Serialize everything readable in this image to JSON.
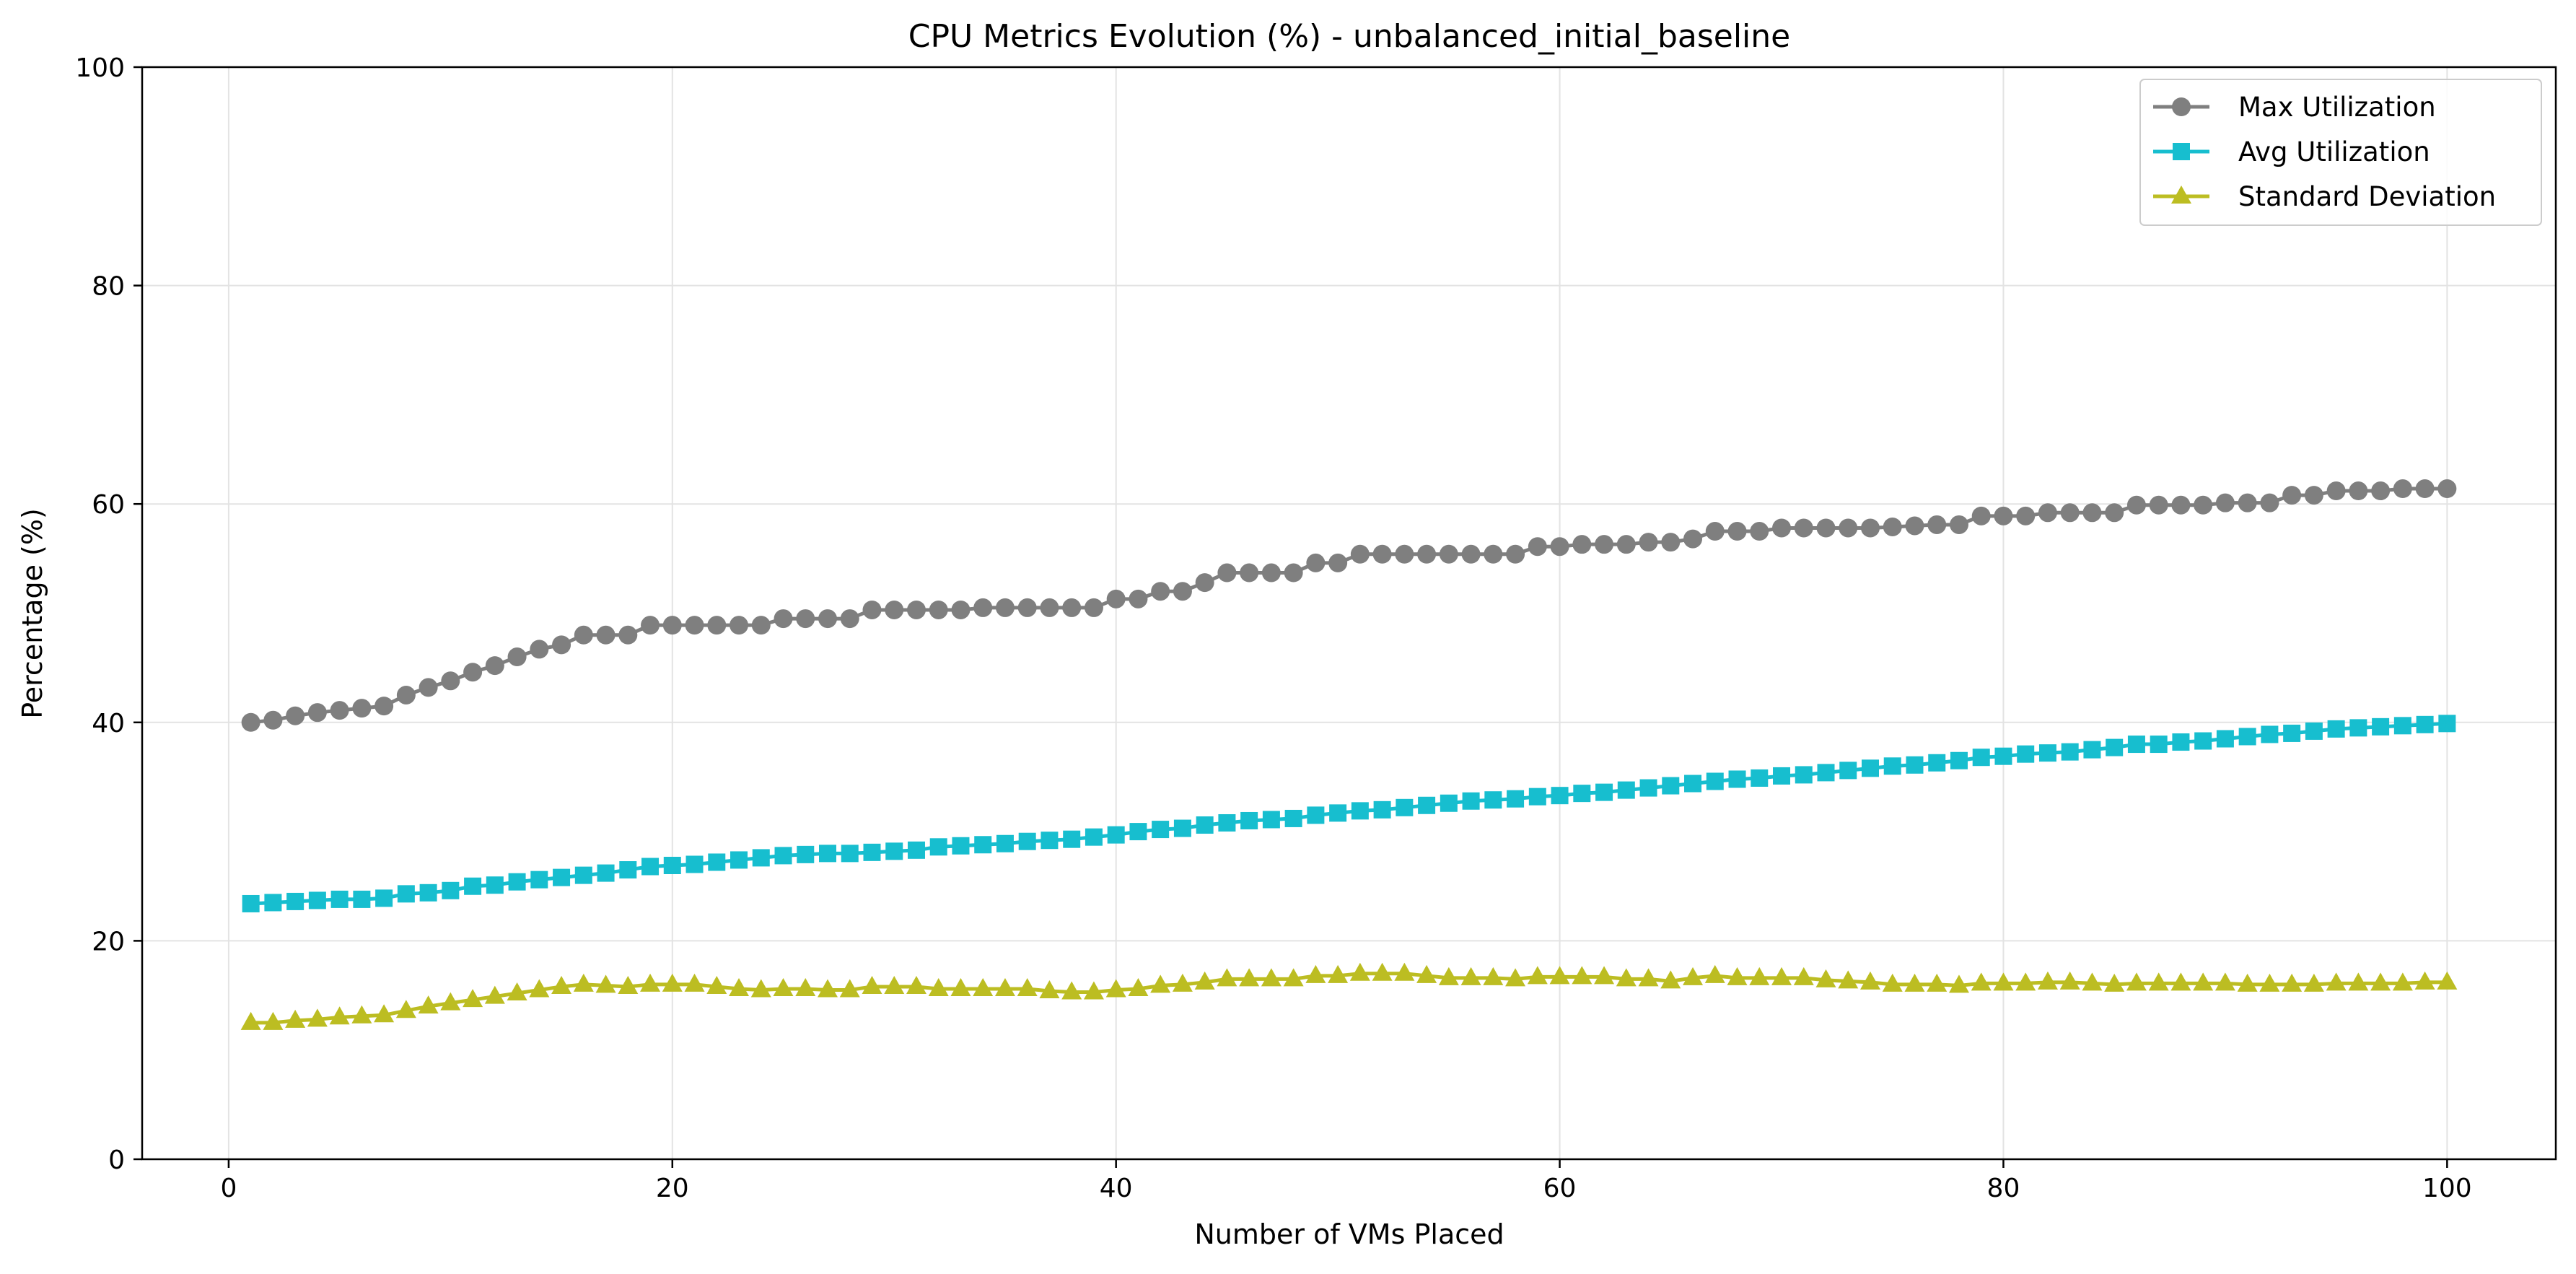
{
  "chart_data": {
    "type": "line",
    "title": "CPU Metrics Evolution (%) - unbalanced_initial_baseline",
    "xlabel": "Number of VMs Placed",
    "ylabel": "Percentage (%)",
    "xlim": [
      -3.9,
      104.9
    ],
    "ylim": [
      0,
      100
    ],
    "xticks": [
      0,
      20,
      40,
      60,
      80,
      100
    ],
    "yticks": [
      0,
      20,
      40,
      60,
      80,
      100
    ],
    "grid": true,
    "legend_position": "top-right",
    "series": [
      {
        "name": "Max Utilization",
        "color": "#7f7f7f",
        "marker": "circle",
        "values": [
          40.0,
          40.2,
          40.6,
          40.9,
          41.1,
          41.3,
          41.5,
          42.5,
          43.2,
          43.8,
          44.6,
          45.2,
          46.0,
          46.7,
          47.1,
          48.0,
          48.0,
          48.0,
          48.9,
          48.9,
          48.9,
          48.9,
          48.9,
          48.9,
          49.5,
          49.5,
          49.5,
          49.5,
          50.3,
          50.3,
          50.3,
          50.3,
          50.3,
          50.5,
          50.5,
          50.5,
          50.5,
          50.5,
          50.5,
          51.3,
          51.3,
          52.0,
          52.0,
          52.8,
          53.7,
          53.7,
          53.7,
          53.7,
          54.6,
          54.6,
          55.4,
          55.4,
          55.4,
          55.4,
          55.4,
          55.4,
          55.4,
          55.4,
          56.1,
          56.1,
          56.3,
          56.3,
          56.3,
          56.5,
          56.5,
          56.8,
          57.5,
          57.5,
          57.5,
          57.8,
          57.8,
          57.8,
          57.8,
          57.8,
          57.9,
          58.0,
          58.1,
          58.1,
          58.9,
          58.9,
          58.9,
          59.2,
          59.2,
          59.2,
          59.2,
          59.9,
          59.9,
          59.9,
          59.9,
          60.1,
          60.1,
          60.1,
          60.8,
          60.8,
          61.2,
          61.2,
          61.2,
          61.4,
          61.4,
          61.4
        ]
      },
      {
        "name": "Avg Utilization",
        "color": "#17becf",
        "marker": "square",
        "values": [
          23.4,
          23.5,
          23.6,
          23.7,
          23.8,
          23.8,
          23.9,
          24.3,
          24.4,
          24.6,
          25.0,
          25.1,
          25.4,
          25.6,
          25.8,
          26.0,
          26.2,
          26.5,
          26.8,
          26.9,
          27.0,
          27.2,
          27.4,
          27.6,
          27.8,
          27.9,
          28.0,
          28.0,
          28.1,
          28.2,
          28.3,
          28.6,
          28.7,
          28.8,
          28.9,
          29.1,
          29.2,
          29.3,
          29.5,
          29.7,
          30.0,
          30.2,
          30.3,
          30.6,
          30.8,
          31.0,
          31.1,
          31.2,
          31.5,
          31.7,
          31.9,
          32.0,
          32.2,
          32.4,
          32.6,
          32.8,
          32.9,
          33.0,
          33.2,
          33.3,
          33.5,
          33.6,
          33.8,
          34.0,
          34.2,
          34.4,
          34.6,
          34.8,
          34.9,
          35.1,
          35.2,
          35.4,
          35.6,
          35.8,
          36.0,
          36.1,
          36.3,
          36.5,
          36.8,
          36.9,
          37.1,
          37.2,
          37.3,
          37.5,
          37.7,
          38.0,
          38.0,
          38.2,
          38.3,
          38.5,
          38.7,
          38.9,
          39.0,
          39.2,
          39.4,
          39.5,
          39.6,
          39.7,
          39.8,
          39.9
        ]
      },
      {
        "name": "Standard Deviation",
        "color": "#bcbd22",
        "marker": "triangle",
        "values": [
          12.5,
          12.5,
          12.7,
          12.8,
          13.0,
          13.1,
          13.2,
          13.6,
          14.0,
          14.3,
          14.6,
          14.9,
          15.2,
          15.5,
          15.8,
          16.0,
          15.9,
          15.8,
          16.0,
          16.0,
          16.0,
          15.8,
          15.6,
          15.5,
          15.6,
          15.6,
          15.5,
          15.5,
          15.8,
          15.8,
          15.8,
          15.6,
          15.6,
          15.6,
          15.6,
          15.6,
          15.4,
          15.3,
          15.3,
          15.5,
          15.6,
          15.9,
          16.0,
          16.2,
          16.5,
          16.5,
          16.5,
          16.5,
          16.8,
          16.8,
          17.0,
          17.0,
          17.0,
          16.8,
          16.6,
          16.6,
          16.6,
          16.5,
          16.7,
          16.7,
          16.7,
          16.7,
          16.5,
          16.5,
          16.3,
          16.6,
          16.8,
          16.6,
          16.6,
          16.6,
          16.6,
          16.4,
          16.3,
          16.2,
          16.0,
          16.0,
          16.0,
          15.9,
          16.1,
          16.1,
          16.1,
          16.2,
          16.2,
          16.1,
          16.0,
          16.1,
          16.1,
          16.1,
          16.1,
          16.1,
          16.0,
          16.0,
          16.0,
          16.0,
          16.1,
          16.1,
          16.1,
          16.1,
          16.2,
          16.2
        ]
      }
    ]
  }
}
